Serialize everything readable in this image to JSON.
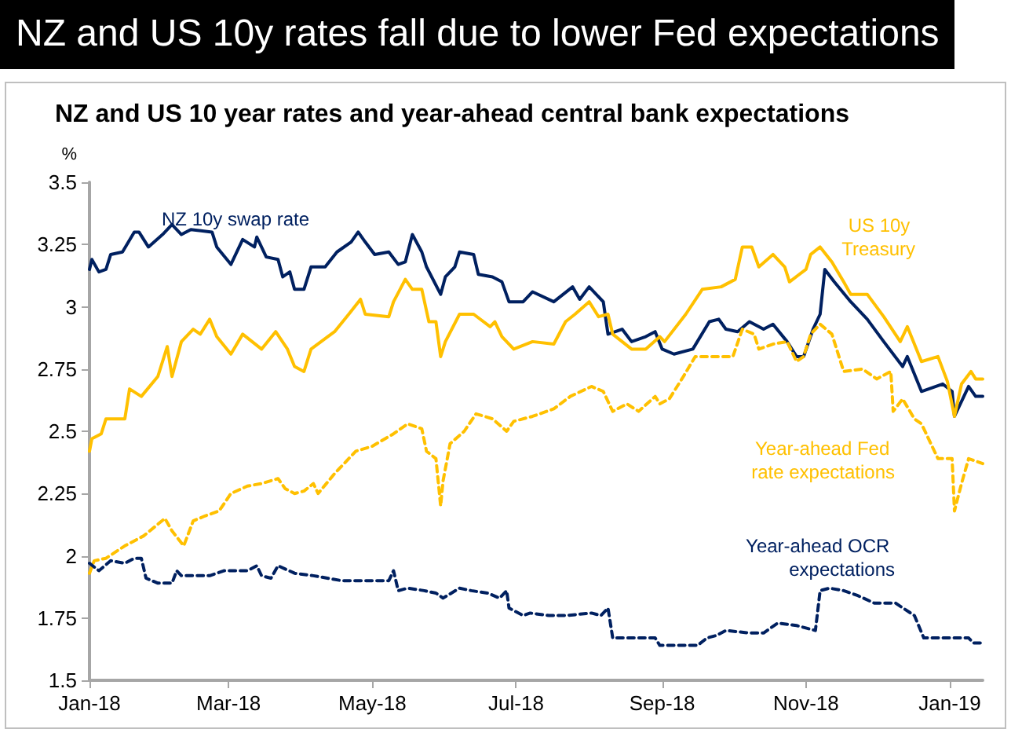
{
  "chart_data": {
    "type": "line",
    "title": "NZ and US 10y rates fall due to lower Fed expectations",
    "subtitle": "NZ and US 10 year rates and year-ahead central bank expectations",
    "ylabel": "%",
    "xlim": [
      "2018-01-01",
      "2019-01-15"
    ],
    "xticks": [
      {
        "value": "2018-01-01",
        "label": "Jan-18"
      },
      {
        "value": "2018-03-01",
        "label": "Mar-18"
      },
      {
        "value": "2018-05-01",
        "label": "May-18"
      },
      {
        "value": "2018-07-01",
        "label": "Jul-18"
      },
      {
        "value": "2018-09-01",
        "label": "Sep-18"
      },
      {
        "value": "2018-11-01",
        "label": "Nov-18"
      },
      {
        "value": "2019-01-01",
        "label": "Jan-19"
      }
    ],
    "ylim": [
      1.5,
      3.5
    ],
    "yticks": [
      1.5,
      1.75,
      2,
      2.25,
      2.5,
      2.75,
      3,
      3.25,
      3.5
    ],
    "grid": false,
    "legend": false,
    "marker": "none",
    "series": [
      {
        "name": "NZ 10y swap rate",
        "color": "#002060",
        "line_style": "solid",
        "x": [
          "2018-01-01",
          "2018-01-02",
          "2018-01-05",
          "2018-01-08",
          "2018-01-10",
          "2018-01-15",
          "2018-01-20",
          "2018-01-22",
          "2018-01-26",
          "2018-02-01",
          "2018-02-05",
          "2018-02-09",
          "2018-02-13",
          "2018-02-22",
          "2018-02-24",
          "2018-03-02",
          "2018-03-07",
          "2018-03-12",
          "2018-03-13",
          "2018-03-17",
          "2018-03-22",
          "2018-03-24",
          "2018-03-27",
          "2018-03-29",
          "2018-04-02",
          "2018-04-05",
          "2018-04-11",
          "2018-04-16",
          "2018-04-22",
          "2018-04-25",
          "2018-04-28",
          "2018-05-02",
          "2018-05-08",
          "2018-05-12",
          "2018-05-15",
          "2018-05-18",
          "2018-05-22",
          "2018-05-24",
          "2018-05-30",
          "2018-06-01",
          "2018-06-05",
          "2018-06-07",
          "2018-06-13",
          "2018-06-15",
          "2018-06-21",
          "2018-06-25",
          "2018-06-28",
          "2018-07-04",
          "2018-07-08",
          "2018-07-17",
          "2018-07-25",
          "2018-07-28",
          "2018-08-01",
          "2018-08-07",
          "2018-08-09",
          "2018-08-15",
          "2018-08-19",
          "2018-08-25",
          "2018-08-29",
          "2018-09-01",
          "2018-09-06",
          "2018-09-14",
          "2018-09-21",
          "2018-09-25",
          "2018-09-28",
          "2018-10-03",
          "2018-10-08",
          "2018-10-14",
          "2018-10-18",
          "2018-10-24",
          "2018-10-28",
          "2018-10-31",
          "2018-11-04",
          "2018-11-07",
          "2018-11-09",
          "2018-11-13",
          "2018-11-20",
          "2018-11-27",
          "2018-12-04",
          "2018-12-12",
          "2018-12-14",
          "2018-12-20",
          "2018-12-29",
          "2019-01-02",
          "2019-01-03",
          "2019-01-09",
          "2019-01-12",
          "2019-01-15"
        ],
        "values": [
          3.15,
          3.19,
          3.14,
          3.15,
          3.21,
          3.22,
          3.3,
          3.3,
          3.24,
          3.29,
          3.33,
          3.29,
          3.31,
          3.3,
          3.24,
          3.17,
          3.27,
          3.24,
          3.28,
          3.2,
          3.19,
          3.12,
          3.14,
          3.07,
          3.07,
          3.16,
          3.16,
          3.22,
          3.26,
          3.3,
          3.26,
          3.21,
          3.22,
          3.17,
          3.18,
          3.29,
          3.22,
          3.16,
          3.05,
          3.12,
          3.16,
          3.22,
          3.21,
          3.13,
          3.12,
          3.1,
          3.02,
          3.02,
          3.06,
          3.02,
          3.08,
          3.03,
          3.08,
          3.02,
          2.89,
          2.91,
          2.86,
          2.88,
          2.9,
          2.83,
          2.81,
          2.83,
          2.94,
          2.95,
          2.91,
          2.9,
          2.94,
          2.91,
          2.93,
          2.86,
          2.8,
          2.8,
          2.91,
          2.97,
          3.15,
          3.1,
          3.02,
          2.95,
          2.86,
          2.76,
          2.8,
          2.66,
          2.69,
          2.66,
          2.56,
          2.68,
          2.64,
          2.64
        ]
      },
      {
        "name": "US 10y Treasury",
        "color": "#ffc000",
        "line_style": "solid",
        "x": [
          "2018-01-01",
          "2018-01-02",
          "2018-01-06",
          "2018-01-08",
          "2018-01-16",
          "2018-01-18",
          "2018-01-23",
          "2018-01-30",
          "2018-02-03",
          "2018-02-05",
          "2018-02-09",
          "2018-02-14",
          "2018-02-17",
          "2018-02-21",
          "2018-02-24",
          "2018-03-02",
          "2018-03-07",
          "2018-03-15",
          "2018-03-21",
          "2018-03-26",
          "2018-03-29",
          "2018-04-02",
          "2018-04-05",
          "2018-04-15",
          "2018-04-21",
          "2018-04-26",
          "2018-04-28",
          "2018-05-08",
          "2018-05-10",
          "2018-05-15",
          "2018-05-18",
          "2018-05-22",
          "2018-05-25",
          "2018-05-28",
          "2018-05-30",
          "2018-06-01",
          "2018-06-07",
          "2018-06-13",
          "2018-06-20",
          "2018-06-22",
          "2018-06-25",
          "2018-06-30",
          "2018-07-08",
          "2018-07-17",
          "2018-07-22",
          "2018-07-26",
          "2018-08-01",
          "2018-08-05",
          "2018-08-09",
          "2018-08-11",
          "2018-08-19",
          "2018-08-25",
          "2018-08-31",
          "2018-09-02",
          "2018-09-11",
          "2018-09-18",
          "2018-09-26",
          "2018-10-02",
          "2018-10-05",
          "2018-10-09",
          "2018-10-12",
          "2018-10-18",
          "2018-10-23",
          "2018-10-25",
          "2018-11-01",
          "2018-11-03",
          "2018-11-07",
          "2018-11-12",
          "2018-11-17",
          "2018-11-20",
          "2018-11-27",
          "2018-12-04",
          "2018-12-11",
          "2018-12-14",
          "2018-12-20",
          "2018-12-27",
          "2018-12-31",
          "2019-01-03",
          "2019-01-06",
          "2019-01-10",
          "2019-01-12",
          "2019-01-15"
        ],
        "values": [
          2.42,
          2.47,
          2.49,
          2.55,
          2.55,
          2.67,
          2.64,
          2.72,
          2.84,
          2.72,
          2.86,
          2.91,
          2.89,
          2.95,
          2.88,
          2.81,
          2.89,
          2.83,
          2.9,
          2.83,
          2.76,
          2.74,
          2.83,
          2.9,
          2.97,
          3.03,
          2.97,
          2.96,
          3.02,
          3.11,
          3.07,
          3.07,
          2.94,
          2.94,
          2.8,
          2.86,
          2.97,
          2.97,
          2.92,
          2.94,
          2.88,
          2.83,
          2.86,
          2.85,
          2.94,
          2.97,
          3.02,
          2.96,
          2.97,
          2.89,
          2.83,
          2.83,
          2.88,
          2.86,
          2.97,
          3.07,
          3.08,
          3.11,
          3.24,
          3.24,
          3.16,
          3.21,
          3.16,
          3.1,
          3.15,
          3.21,
          3.24,
          3.18,
          3.1,
          3.05,
          3.05,
          2.96,
          2.86,
          2.92,
          2.78,
          2.8,
          2.7,
          2.56,
          2.69,
          2.74,
          2.71,
          2.71
        ]
      },
      {
        "name": "Year-ahead Fed rate expectations",
        "color": "#ffc000",
        "line_style": "dashed",
        "x": [
          "2018-01-01",
          "2018-01-03",
          "2018-01-08",
          "2018-01-16",
          "2018-01-24",
          "2018-02-02",
          "2018-02-05",
          "2018-02-10",
          "2018-02-14",
          "2018-02-19",
          "2018-02-25",
          "2018-03-02",
          "2018-03-09",
          "2018-03-15",
          "2018-03-22",
          "2018-03-25",
          "2018-03-29",
          "2018-04-02",
          "2018-04-06",
          "2018-04-08",
          "2018-04-15",
          "2018-04-24",
          "2018-05-01",
          "2018-05-10",
          "2018-05-16",
          "2018-05-22",
          "2018-05-24",
          "2018-05-28",
          "2018-05-30",
          "2018-05-31",
          "2018-06-03",
          "2018-06-09",
          "2018-06-14",
          "2018-06-21",
          "2018-06-27",
          "2018-06-30",
          "2018-07-08",
          "2018-07-17",
          "2018-07-24",
          "2018-08-02",
          "2018-08-07",
          "2018-08-11",
          "2018-08-17",
          "2018-08-22",
          "2018-08-29",
          "2018-08-31",
          "2018-09-04",
          "2018-09-10",
          "2018-09-15",
          "2018-09-22",
          "2018-10-01",
          "2018-10-05",
          "2018-10-10",
          "2018-10-12",
          "2018-10-18",
          "2018-10-24",
          "2018-10-28",
          "2018-10-31",
          "2018-11-03",
          "2018-11-07",
          "2018-11-12",
          "2018-11-17",
          "2018-11-25",
          "2018-12-01",
          "2018-12-07",
          "2018-12-08",
          "2018-12-12",
          "2018-12-17",
          "2018-12-20",
          "2018-12-24",
          "2018-12-27",
          "2019-01-02",
          "2019-01-03",
          "2019-01-06",
          "2019-01-09",
          "2019-01-15"
        ],
        "values": [
          1.93,
          1.98,
          1.99,
          2.04,
          2.08,
          2.15,
          2.1,
          2.04,
          2.14,
          2.16,
          2.18,
          2.25,
          2.28,
          2.29,
          2.31,
          2.27,
          2.25,
          2.26,
          2.29,
          2.25,
          2.33,
          2.42,
          2.44,
          2.49,
          2.53,
          2.51,
          2.42,
          2.39,
          2.2,
          2.3,
          2.45,
          2.5,
          2.57,
          2.55,
          2.5,
          2.54,
          2.56,
          2.59,
          2.64,
          2.68,
          2.66,
          2.58,
          2.61,
          2.58,
          2.64,
          2.61,
          2.63,
          2.72,
          2.8,
          2.8,
          2.8,
          2.91,
          2.89,
          2.83,
          2.85,
          2.86,
          2.78,
          2.8,
          2.89,
          2.93,
          2.89,
          2.74,
          2.75,
          2.71,
          2.74,
          2.58,
          2.63,
          2.55,
          2.53,
          2.45,
          2.39,
          2.39,
          2.18,
          2.29,
          2.39,
          2.37
        ]
      },
      {
        "name": "Year-ahead OCR expectations",
        "color": "#002060",
        "line_style": "dashed",
        "x": [
          "2018-01-01",
          "2018-01-05",
          "2018-01-10",
          "2018-01-16",
          "2018-01-20",
          "2018-01-23",
          "2018-01-25",
          "2018-01-30",
          "2018-02-05",
          "2018-02-07",
          "2018-02-09",
          "2018-02-21",
          "2018-02-27",
          "2018-03-09",
          "2018-03-13",
          "2018-03-15",
          "2018-03-19",
          "2018-03-22",
          "2018-03-29",
          "2018-04-06",
          "2018-04-18",
          "2018-04-28",
          "2018-05-08",
          "2018-05-10",
          "2018-05-12",
          "2018-05-16",
          "2018-05-23",
          "2018-05-28",
          "2018-05-31",
          "2018-06-07",
          "2018-06-12",
          "2018-06-19",
          "2018-06-24",
          "2018-06-27",
          "2018-06-28",
          "2018-07-04",
          "2018-07-07",
          "2018-07-15",
          "2018-07-22",
          "2018-08-02",
          "2018-08-06",
          "2018-08-09",
          "2018-08-11",
          "2018-08-17",
          "2018-08-29",
          "2018-08-31",
          "2018-09-06",
          "2018-09-16",
          "2018-09-20",
          "2018-09-24",
          "2018-09-28",
          "2018-10-08",
          "2018-10-14",
          "2018-10-20",
          "2018-10-28",
          "2018-11-05",
          "2018-11-07",
          "2018-11-11",
          "2018-11-17",
          "2018-11-23",
          "2018-11-30",
          "2018-12-09",
          "2018-12-17",
          "2018-12-21",
          "2018-12-24",
          "2019-01-09",
          "2019-01-11",
          "2019-01-15"
        ],
        "values": [
          1.97,
          1.94,
          1.98,
          1.97,
          1.99,
          1.99,
          1.91,
          1.89,
          1.89,
          1.94,
          1.92,
          1.92,
          1.94,
          1.94,
          1.96,
          1.92,
          1.91,
          1.96,
          1.93,
          1.92,
          1.9,
          1.9,
          1.9,
          1.94,
          1.86,
          1.87,
          1.86,
          1.85,
          1.83,
          1.87,
          1.86,
          1.85,
          1.83,
          1.86,
          1.79,
          1.76,
          1.77,
          1.76,
          1.76,
          1.77,
          1.76,
          1.79,
          1.67,
          1.67,
          1.67,
          1.64,
          1.64,
          1.64,
          1.67,
          1.68,
          1.7,
          1.69,
          1.69,
          1.73,
          1.72,
          1.7,
          1.86,
          1.87,
          1.86,
          1.84,
          1.81,
          1.81,
          1.76,
          1.67,
          1.67,
          1.67,
          1.65,
          1.65
        ]
      }
    ]
  }
}
